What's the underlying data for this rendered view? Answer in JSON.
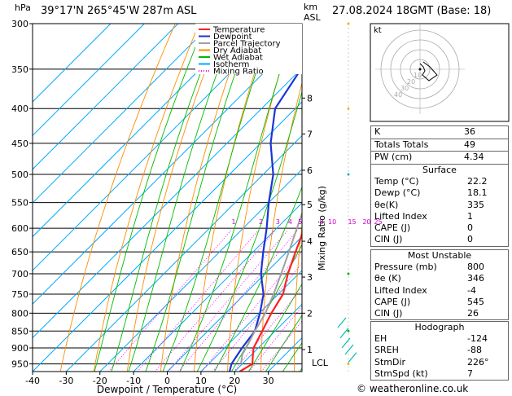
{
  "header": {
    "location": "39°17'N 265°45'W 287m ASL",
    "datetime": "27.08.2024 18GMT (Base: 18)",
    "hpa_label": "hPa",
    "km_label": "km",
    "asl_label": "ASL",
    "footer": "© weatheronline.co.uk"
  },
  "chart_data": {
    "type": "line",
    "title": "",
    "xlabel": "Dewpoint / Temperature (°C)",
    "ylabel": "",
    "right_axis_label": "Mixing Ratio (g/kg)",
    "x_ticks": [
      -40,
      -30,
      -20,
      -10,
      0,
      10,
      20,
      30
    ],
    "xlim": [
      -40,
      40
    ],
    "pressure_levels": [
      300,
      350,
      400,
      450,
      500,
      550,
      600,
      650,
      700,
      750,
      800,
      850,
      900,
      950
    ],
    "pressure_range": [
      300,
      975
    ],
    "km_ticks": [
      {
        "label": "1",
        "p": 905
      },
      {
        "label": "2",
        "p": 800
      },
      {
        "label": "3",
        "p": 708
      },
      {
        "label": "4",
        "p": 627
      },
      {
        "label": "5",
        "p": 554
      },
      {
        "label": "6",
        "p": 493
      },
      {
        "label": "7",
        "p": 436
      },
      {
        "label": "8",
        "p": 386
      }
    ],
    "lcl": {
      "label": "LCL",
      "p": 920
    },
    "mixing_ratio_labels": [
      "1",
      "2",
      "3",
      "4",
      "5",
      "8",
      "10",
      "15",
      "20",
      "25"
    ],
    "mixing_ratio_values": [
      1,
      2,
      3,
      4,
      5,
      8,
      10,
      15,
      20,
      25
    ],
    "legend": {
      "position": "top-left",
      "entries": [
        {
          "name": "Temperature",
          "color": "#ff2020",
          "style": "solid"
        },
        {
          "name": "Dewpoint",
          "color": "#1a34d6",
          "style": "solid"
        },
        {
          "name": "Parcel Trajectory",
          "color": "#a0a0a0",
          "style": "solid"
        },
        {
          "name": "Dry Adiabat",
          "color": "#ff8c00",
          "style": "solid"
        },
        {
          "name": "Wet Adiabat",
          "color": "#00bb00",
          "style": "solid"
        },
        {
          "name": "Isotherm",
          "color": "#00aaff",
          "style": "solid"
        },
        {
          "name": "Mixing Ratio",
          "color": "#ff00ff",
          "style": "dotted"
        }
      ]
    },
    "series": [
      {
        "name": "Temperature",
        "color": "#ff2020",
        "points": [
          [
            975,
            21.5
          ],
          [
            950,
            23.0
          ],
          [
            925,
            20.8
          ],
          [
            900,
            18.6
          ],
          [
            850,
            16.2
          ],
          [
            800,
            13.6
          ],
          [
            750,
            11.4
          ],
          [
            700,
            6.8
          ],
          [
            650,
            2.6
          ],
          [
            600,
            -1.8
          ],
          [
            550,
            -5.8
          ],
          [
            500,
            -9.8
          ],
          [
            450,
            -13.4
          ],
          [
            400,
            -19.8
          ],
          [
            350,
            -27.0
          ],
          [
            300,
            -35.0
          ]
        ]
      },
      {
        "name": "Dewpoint",
        "color": "#1a34d6",
        "points": [
          [
            975,
            18.5
          ],
          [
            950,
            16.8
          ],
          [
            925,
            16.0
          ],
          [
            900,
            15.2
          ],
          [
            850,
            14.0
          ],
          [
            800,
            10.2
          ],
          [
            750,
            5.6
          ],
          [
            700,
            -1.2
          ],
          [
            650,
            -7.0
          ],
          [
            600,
            -13.0
          ],
          [
            550,
            -20.0
          ],
          [
            500,
            -27.0
          ],
          [
            450,
            -37.0
          ],
          [
            400,
            -46.0
          ],
          [
            350,
            -50.0
          ],
          [
            300,
            -58.0
          ]
        ]
      },
      {
        "name": "Parcel Trajectory",
        "color": "#a0a0a0",
        "points": [
          [
            950,
            19.6
          ],
          [
            920,
            17.2
          ],
          [
            900,
            16.4
          ],
          [
            850,
            14.0
          ],
          [
            800,
            11.8
          ],
          [
            750,
            8.6
          ],
          [
            700,
            4.8
          ],
          [
            650,
            0.6
          ],
          [
            600,
            -4.0
          ],
          [
            550,
            -9.0
          ],
          [
            500,
            -14.6
          ],
          [
            450,
            -21.0
          ],
          [
            400,
            -28.6
          ],
          [
            350,
            -37.6
          ],
          [
            300,
            -48.0
          ]
        ]
      }
    ],
    "wind_barbs_present": true
  },
  "hodograph": {
    "label": "kt",
    "ring_labels": [
      "10",
      "20",
      "30",
      "40"
    ]
  },
  "indices": [
    {
      "label": "K",
      "value": "36"
    },
    {
      "label": "Totals Totals",
      "value": "49"
    },
    {
      "label": "PW (cm)",
      "value": "4.34"
    }
  ],
  "surface": {
    "title": "Surface",
    "rows": [
      {
        "label": "Temp (°C)",
        "value": "22.2"
      },
      {
        "label": "Dewp (°C)",
        "value": "18.1"
      },
      {
        "label": "θe(K)",
        "value": "335"
      },
      {
        "label": "Lifted Index",
        "value": "1"
      },
      {
        "label": "CAPE (J)",
        "value": "0"
      },
      {
        "label": "CIN (J)",
        "value": "0"
      }
    ]
  },
  "most_unstable": {
    "title": "Most Unstable",
    "rows": [
      {
        "label": "Pressure (mb)",
        "value": "800"
      },
      {
        "label": "θe (K)",
        "value": "346"
      },
      {
        "label": "Lifted Index",
        "value": "-4"
      },
      {
        "label": "CAPE (J)",
        "value": "545"
      },
      {
        "label": "CIN (J)",
        "value": "26"
      }
    ]
  },
  "hodograph_box": {
    "title": "Hodograph",
    "rows": [
      {
        "label": "EH",
        "value": "-124"
      },
      {
        "label": "SREH",
        "value": "-88"
      },
      {
        "label": "StmDir",
        "value": "226°"
      },
      {
        "label": "StmSpd (kt)",
        "value": "7"
      }
    ]
  }
}
